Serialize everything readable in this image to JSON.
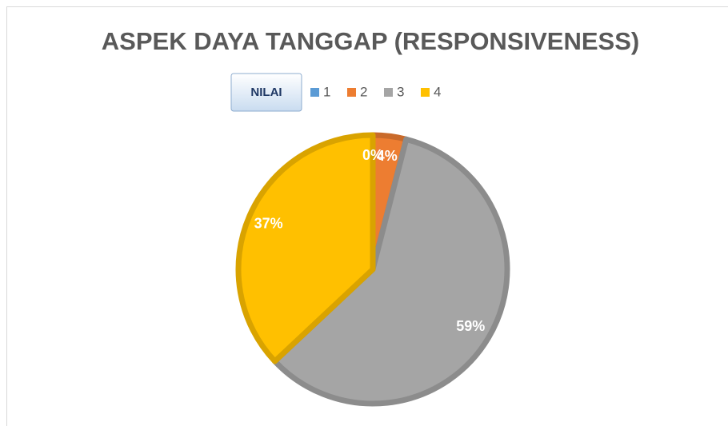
{
  "chart_data": {
    "type": "pie",
    "title": "ASPEK DAYA TANGGAP (RESPONSIVENESS)",
    "legend_title": "NILAI",
    "categories": [
      "1",
      "2",
      "3",
      "4"
    ],
    "values": [
      0,
      4,
      59,
      37
    ],
    "value_labels": [
      "0%",
      "4%",
      "59%",
      "37%"
    ],
    "colors": [
      "#5b9bd5",
      "#ed7d31",
      "#a5a5a5",
      "#ffc000"
    ],
    "legend": "top"
  }
}
